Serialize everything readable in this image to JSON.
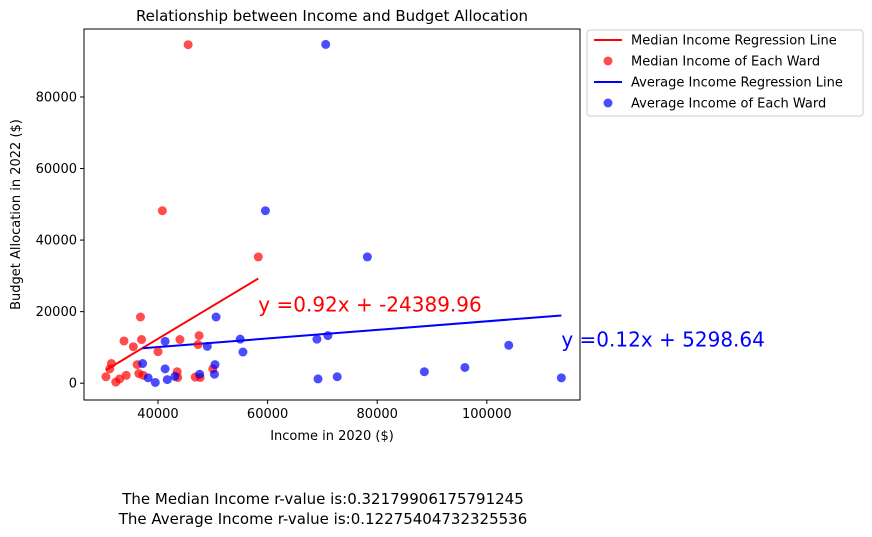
{
  "chart_data": {
    "type": "scatter",
    "title": "Relationship between Income and Budget Allocation",
    "xlabel": "Income in 2020 ($)",
    "ylabel": "Budget Allocation in 2022 ($)",
    "xlim": [
      26500,
      117000
    ],
    "ylim": [
      -4700,
      99000
    ],
    "xticks": [
      40000,
      60000,
      80000,
      100000
    ],
    "yticks": [
      0,
      20000,
      40000,
      60000,
      80000
    ],
    "grid": false,
    "legend_position": "outside-top-right",
    "series": [
      {
        "name": "Median Income of Each Ward",
        "kind": "scatter",
        "color": "#ff0000",
        "points": [
          [
            30500,
            1800
          ],
          [
            31200,
            4000
          ],
          [
            31500,
            5500
          ],
          [
            32300,
            300
          ],
          [
            33000,
            1200
          ],
          [
            33800,
            11800
          ],
          [
            34200,
            2200
          ],
          [
            35500,
            10200
          ],
          [
            36200,
            5200
          ],
          [
            36500,
            2700
          ],
          [
            36800,
            18500
          ],
          [
            37000,
            12200
          ],
          [
            37300,
            2200
          ],
          [
            40000,
            8800
          ],
          [
            40800,
            48200
          ],
          [
            43500,
            3200
          ],
          [
            43600,
            1600
          ],
          [
            44000,
            12200
          ],
          [
            45500,
            94600
          ],
          [
            46800,
            1700
          ],
          [
            47300,
            10800
          ],
          [
            47500,
            13300
          ],
          [
            47700,
            1600
          ],
          [
            50000,
            4000
          ],
          [
            58300,
            35300
          ]
        ]
      },
      {
        "name": "Median Income Regression Line",
        "kind": "line",
        "color": "#ff0000",
        "x": [
          30500,
          58300
        ],
        "y": [
          3670,
          29250
        ]
      },
      {
        "name": "Average Income of Each Ward",
        "kind": "scatter",
        "color": "#0000ff",
        "points": [
          [
            37200,
            5500
          ],
          [
            38200,
            1500
          ],
          [
            39500,
            200
          ],
          [
            41300,
            11700
          ],
          [
            41300,
            4000
          ],
          [
            41700,
            1000
          ],
          [
            43100,
            1900
          ],
          [
            47600,
            2500
          ],
          [
            49000,
            10300
          ],
          [
            50300,
            2500
          ],
          [
            50400,
            5200
          ],
          [
            50600,
            18500
          ],
          [
            55000,
            12300
          ],
          [
            55500,
            8700
          ],
          [
            59600,
            48200
          ],
          [
            69000,
            12300
          ],
          [
            69200,
            1200
          ],
          [
            70600,
            94700
          ],
          [
            71000,
            13300
          ],
          [
            72700,
            1800
          ],
          [
            78200,
            35300
          ],
          [
            88600,
            3200
          ],
          [
            96000,
            4400
          ],
          [
            104000,
            10600
          ],
          [
            113600,
            1500
          ]
        ]
      },
      {
        "name": "Average Income Regression Line",
        "kind": "line",
        "color": "#0000ff",
        "x": [
          37200,
          113600
        ],
        "y": [
          9762,
          18930
        ]
      }
    ],
    "legend": [
      "Median Income Regression Line",
      "Median Income of Each Ward",
      "Average Income Regression Line",
      "Average Income of Each Ward"
    ],
    "annotations": [
      {
        "text": "y =0.92x + -24389.96",
        "color": "#ff0000",
        "x": 58300,
        "y": 20000
      },
      {
        "text": "y =0.12x + 5298.64",
        "color": "#0000ff",
        "x": 113600,
        "y": 10300
      }
    ]
  },
  "footer": {
    "line1": "The Median Income r-value is:0.32179906175791245",
    "line2": "The Average Income r-value is:0.12275404732325536"
  }
}
